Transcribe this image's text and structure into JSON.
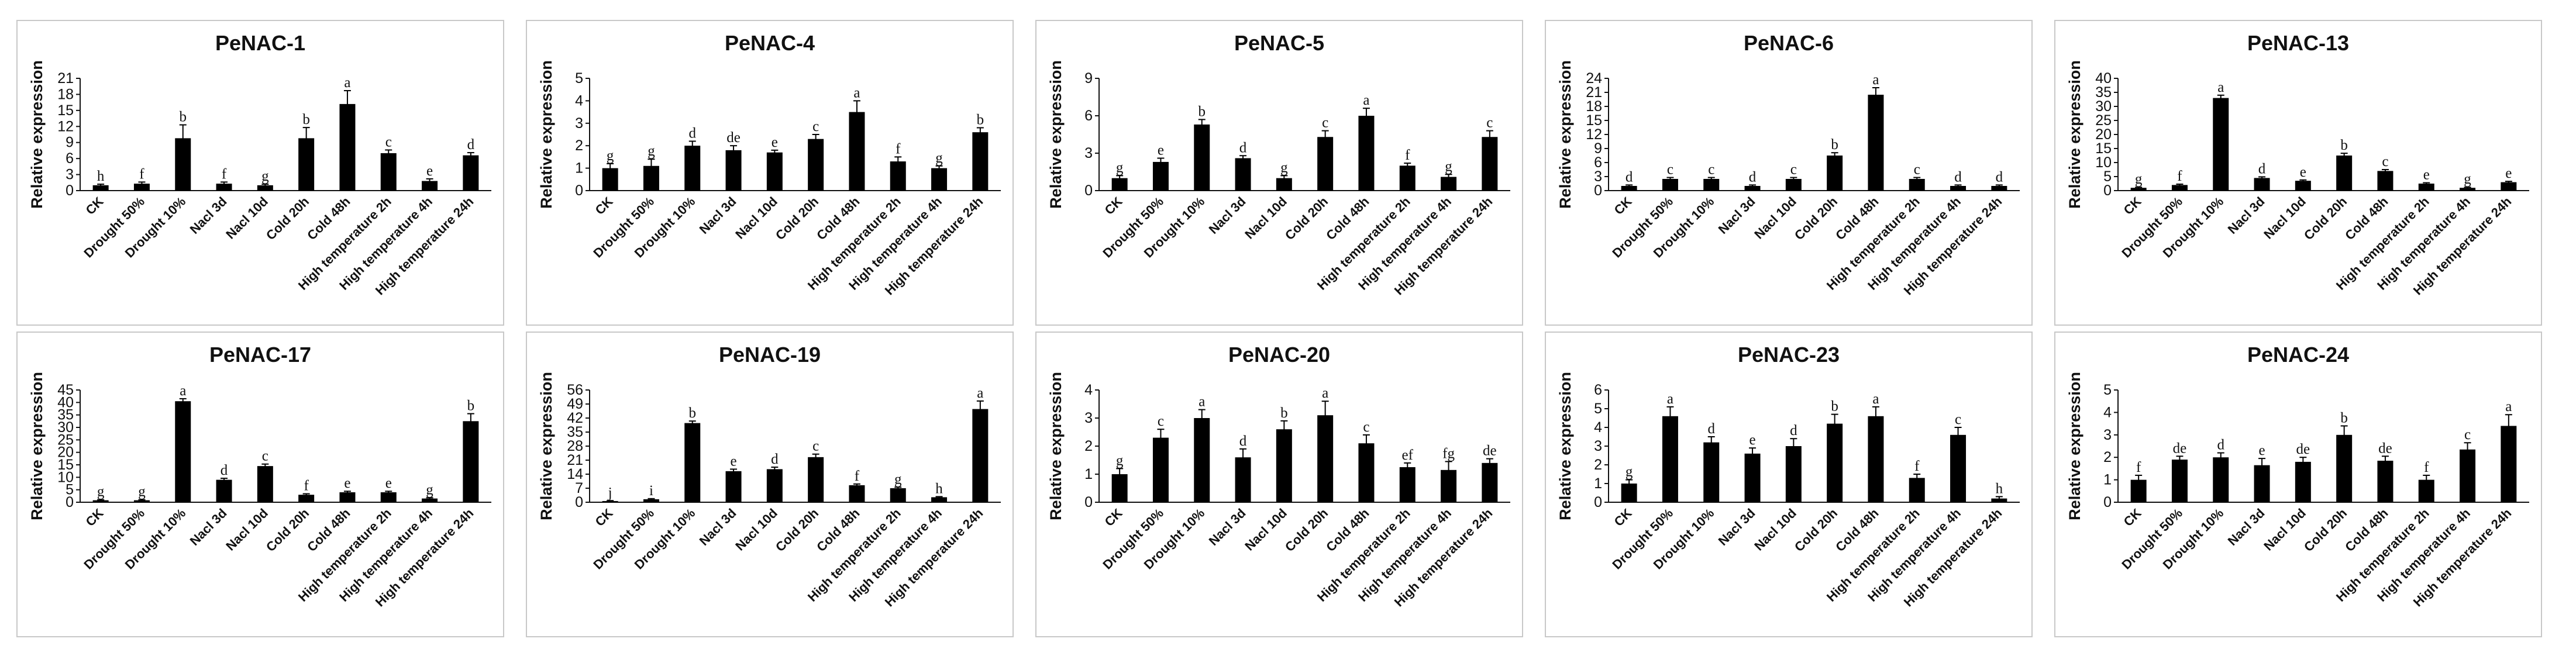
{
  "chart_data": [
    {
      "type": "bar",
      "title": "PeNAC-1",
      "ylabel": "Relative expression",
      "ylim": [
        0,
        21
      ],
      "yticks": [
        0,
        3,
        6,
        9,
        12,
        15,
        18,
        21
      ],
      "categories": [
        "CK",
        "Drought 50%",
        "Drought 10%",
        "Nacl 3d",
        "Nacl 10d",
        "Cold 20h",
        "Cold 48h",
        "High temperature 2h",
        "High temperature 4h",
        "High temperature 24h"
      ],
      "values": [
        1,
        1.3,
        9.8,
        1.3,
        1,
        9.8,
        16.2,
        7,
        1.8,
        6.6
      ],
      "errors": [
        0.2,
        0.3,
        2.5,
        0.3,
        0.2,
        2,
        2.5,
        0.6,
        0.4,
        0.5
      ],
      "letters": [
        "h",
        "f",
        "b",
        "f",
        "g",
        "b",
        "a",
        "c",
        "e",
        "d"
      ]
    },
    {
      "type": "bar",
      "title": "PeNAC-4",
      "ylabel": "Relative expression",
      "ylim": [
        0,
        5
      ],
      "yticks": [
        0,
        1,
        2,
        3,
        4,
        5
      ],
      "categories": [
        "CK",
        "Drought 50%",
        "Drought 10%",
        "Nacl 3d",
        "Nacl 10d",
        "Cold 20h",
        "Cold 48h",
        "High temperature 2h",
        "High temperature 4h",
        "High temperature 24h"
      ],
      "values": [
        1,
        1.1,
        2,
        1.8,
        1.7,
        2.3,
        3.5,
        1.3,
        1,
        2.6
      ],
      "errors": [
        0.2,
        0.3,
        0.2,
        0.2,
        0.1,
        0.2,
        0.5,
        0.2,
        0.1,
        0.2
      ],
      "letters": [
        "g",
        "g",
        "d",
        "de",
        "e",
        "c",
        "a",
        "f",
        "g",
        "b"
      ]
    },
    {
      "type": "bar",
      "title": "PeNAC-5",
      "ylabel": "Relative expression",
      "ylim": [
        0,
        9
      ],
      "yticks": [
        0,
        3,
        6,
        9
      ],
      "categories": [
        "CK",
        "Drought 50%",
        "Drought 10%",
        "Nacl 3d",
        "Nacl 10d",
        "Cold 20h",
        "Cold 48h",
        "High temperature 2h",
        "High temperature 4h",
        "High temperature 24h"
      ],
      "values": [
        1,
        2.3,
        5.3,
        2.6,
        1,
        4.3,
        6,
        2,
        1.1,
        4.3
      ],
      "errors": [
        0.2,
        0.3,
        0.4,
        0.2,
        0.2,
        0.5,
        0.6,
        0.2,
        0.2,
        0.5
      ],
      "letters": [
        "g",
        "e",
        "b",
        "d",
        "g",
        "c",
        "a",
        "f",
        "g",
        "c"
      ]
    },
    {
      "type": "bar",
      "title": "PeNAC-6",
      "ylabel": "Relative expression",
      "ylim": [
        0,
        24
      ],
      "yticks": [
        0,
        3,
        6,
        9,
        12,
        15,
        18,
        21,
        24
      ],
      "categories": [
        "CK",
        "Drought 50%",
        "Drought 10%",
        "Nacl 3d",
        "Nacl 10d",
        "Cold 20h",
        "Cold 48h",
        "High temperature 2h",
        "High temperature 4h",
        "High temperature 24h"
      ],
      "values": [
        1,
        2.5,
        2.5,
        1,
        2.5,
        7.5,
        20.5,
        2.5,
        1,
        1
      ],
      "errors": [
        0.2,
        0.3,
        0.3,
        0.2,
        0.3,
        0.6,
        1.5,
        0.3,
        0.2,
        0.2
      ],
      "letters": [
        "d",
        "c",
        "c",
        "d",
        "c",
        "b",
        "a",
        "c",
        "d",
        "d"
      ]
    },
    {
      "type": "bar",
      "title": "PeNAC-13",
      "ylabel": "Relative expression",
      "ylim": [
        0,
        40
      ],
      "yticks": [
        0,
        5,
        10,
        15,
        20,
        25,
        30,
        35,
        40
      ],
      "categories": [
        "CK",
        "Drought 50%",
        "Drought 10%",
        "Nacl 3d",
        "Nacl 10d",
        "Cold 20h",
        "Cold 48h",
        "High temperature 2h",
        "High temperature 4h",
        "High temperature 24h"
      ],
      "values": [
        1,
        2,
        33,
        4.5,
        3.5,
        12.5,
        7,
        2.5,
        1,
        3
      ],
      "errors": [
        0.2,
        0.3,
        1,
        0.4,
        0.3,
        0.8,
        0.5,
        0.3,
        0.2,
        0.3
      ],
      "letters": [
        "g",
        "f",
        "a",
        "d",
        "e",
        "b",
        "c",
        "e",
        "g",
        "e"
      ]
    },
    {
      "type": "bar",
      "title": "PeNAC-17",
      "ylabel": "Relative expression",
      "ylim": [
        0,
        45
      ],
      "yticks": [
        0,
        5,
        10,
        15,
        20,
        25,
        30,
        35,
        40,
        45
      ],
      "categories": [
        "CK",
        "Drought 50%",
        "Drought 10%",
        "Nacl 3d",
        "Nacl 10d",
        "Cold 20h",
        "Cold 48h",
        "High temperature 2h",
        "High temperature 4h",
        "High temperature 24h"
      ],
      "values": [
        0.8,
        0.8,
        40.5,
        9,
        14.5,
        3,
        4,
        4,
        1.5,
        32.5
      ],
      "errors": [
        0.2,
        0.2,
        1,
        0.6,
        0.8,
        0.4,
        0.4,
        0.4,
        0.3,
        3
      ],
      "letters": [
        "g",
        "g",
        "a",
        "d",
        "c",
        "f",
        "e",
        "e",
        "g",
        "b"
      ]
    },
    {
      "type": "bar",
      "title": "PeNAC-19",
      "ylabel": "Relative expression",
      "ylim": [
        0,
        56
      ],
      "yticks": [
        0,
        7,
        14,
        21,
        28,
        35,
        42,
        49,
        56
      ],
      "categories": [
        "CK",
        "Drought 50%",
        "Drought 10%",
        "Nacl 3d",
        "Nacl 10d",
        "Cold 20h",
        "Cold 48h",
        "High temperature 2h",
        "High temperature 4h",
        "High temperature 24h"
      ],
      "values": [
        0.6,
        1.5,
        39.5,
        15.5,
        16.5,
        22.5,
        8.5,
        7,
        2.5,
        46.5
      ],
      "errors": [
        0.2,
        0.3,
        1,
        1,
        1,
        1.5,
        0.6,
        0.5,
        0.3,
        4
      ],
      "letters": [
        "j",
        "i",
        "b",
        "e",
        "d",
        "c",
        "f",
        "g",
        "h",
        "a"
      ]
    },
    {
      "type": "bar",
      "title": "PeNAC-20",
      "ylabel": "Relative expression",
      "ylim": [
        0,
        4
      ],
      "yticks": [
        0,
        1,
        2,
        3,
        4
      ],
      "categories": [
        "CK",
        "Drought 50%",
        "Drought 10%",
        "Nacl 3d",
        "Nacl 10d",
        "Cold 20h",
        "Cold 48h",
        "High temperature 2h",
        "High temperature 4h",
        "High temperature 24h"
      ],
      "values": [
        1,
        2.3,
        3,
        1.6,
        2.6,
        3.1,
        2.1,
        1.25,
        1.15,
        1.4
      ],
      "errors": [
        0.2,
        0.3,
        0.3,
        0.3,
        0.3,
        0.5,
        0.3,
        0.15,
        0.3,
        0.15
      ],
      "letters": [
        "g",
        "c",
        "a",
        "d",
        "b",
        "a",
        "c",
        "ef",
        "fg",
        "de"
      ]
    },
    {
      "type": "bar",
      "title": "PeNAC-23",
      "ylabel": "Relative expression",
      "ylim": [
        0,
        6
      ],
      "yticks": [
        0,
        1,
        2,
        3,
        4,
        5,
        6
      ],
      "categories": [
        "CK",
        "Drought 50%",
        "Drought 10%",
        "Nacl 3d",
        "Nacl 10d",
        "Cold 20h",
        "Cold 48h",
        "High temperature 2h",
        "High temperature 4h",
        "High temperature 24h"
      ],
      "values": [
        1,
        4.6,
        3.2,
        2.6,
        3,
        4.2,
        4.6,
        1.3,
        3.6,
        0.2
      ],
      "errors": [
        0.2,
        0.5,
        0.3,
        0.3,
        0.4,
        0.5,
        0.5,
        0.2,
        0.4,
        0.1
      ],
      "letters": [
        "g",
        "a",
        "d",
        "e",
        "d",
        "b",
        "a",
        "f",
        "c",
        "h"
      ]
    },
    {
      "type": "bar",
      "title": "PeNAC-24",
      "ylabel": "Relative expression",
      "ylim": [
        0,
        5
      ],
      "yticks": [
        0,
        1,
        2,
        3,
        4,
        5
      ],
      "categories": [
        "CK",
        "Drought 50%",
        "Drought 10%",
        "Nacl 3d",
        "Nacl 10d",
        "Cold 20h",
        "Cold 48h",
        "High temperature 2h",
        "High temperature 4h",
        "High temperature 24h"
      ],
      "values": [
        1,
        1.9,
        2,
        1.65,
        1.8,
        3,
        1.85,
        1,
        2.35,
        3.4
      ],
      "errors": [
        0.2,
        0.15,
        0.2,
        0.3,
        0.2,
        0.4,
        0.2,
        0.2,
        0.3,
        0.5
      ],
      "letters": [
        "f",
        "de",
        "d",
        "e",
        "de",
        "b",
        "de",
        "f",
        "c",
        "a"
      ]
    }
  ]
}
